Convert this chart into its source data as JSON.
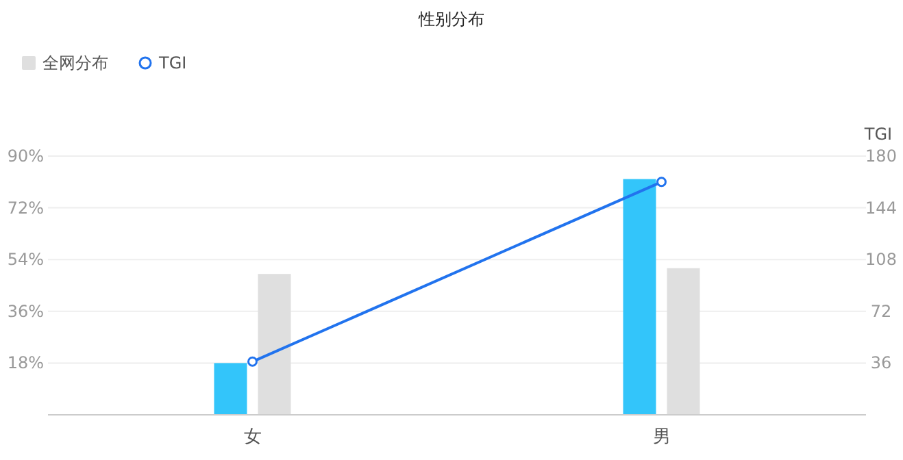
{
  "chart_data": {
    "type": "bar",
    "title": "性别分布",
    "categories": [
      "女",
      "男"
    ],
    "series": [
      {
        "color": "#33c5fa",
        "values": [
          18,
          82
        ]
      },
      {
        "name": "全网分布",
        "color": "#dfdfdf",
        "values": [
          49,
          51
        ]
      },
      {
        "name": "TGI",
        "type": "line",
        "axis": "y2",
        "color": "#2173ee",
        "values": [
          37,
          162
        ],
        "marker": "circle"
      }
    ],
    "ylim": [
      0,
      90
    ],
    "yticks": [
      {
        "value": 18,
        "label": "18%"
      },
      {
        "value": 36,
        "label": "36%"
      },
      {
        "value": 54,
        "label": "54%"
      },
      {
        "value": 72,
        "label": "72%"
      },
      {
        "value": 90,
        "label": "90%"
      }
    ],
    "y2lim": [
      0,
      180
    ],
    "y2ticks": [
      36,
      72,
      108,
      144,
      180
    ],
    "y2label": "TGI",
    "grid": "y",
    "legend": "top left"
  }
}
